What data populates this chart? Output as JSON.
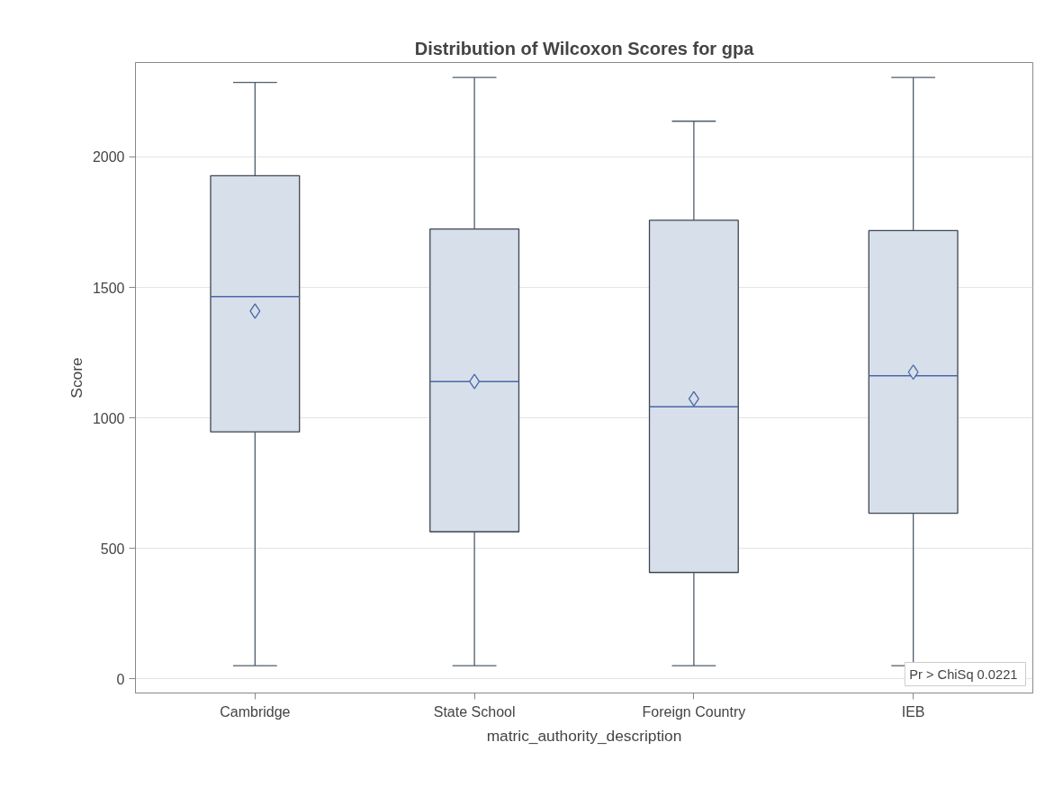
{
  "chart_data": {
    "type": "box",
    "title": "Distribution of Wilcoxon Scores for gpa",
    "xlabel": "matric_authority_description",
    "ylabel": "Score",
    "categories": [
      "Cambridge",
      "State School",
      "Foreign Country",
      "IEB"
    ],
    "series": [
      {
        "color": "#d7dfea",
        "boxes": [
          {
            "low": 50,
            "q1": 946,
            "median": 1465,
            "q3": 1928,
            "high": 2286,
            "mean": 1409
          },
          {
            "low": 50,
            "q1": 563,
            "median": 1139,
            "q3": 1724,
            "high": 2305,
            "mean": 1139
          },
          {
            "low": 50,
            "q1": 407,
            "median": 1042,
            "q3": 1757,
            "high": 2137,
            "mean": 1073
          },
          {
            "low": 50,
            "q1": 634,
            "median": 1161,
            "q3": 1718,
            "high": 2305,
            "mean": 1175
          }
        ]
      }
    ],
    "ylim": [
      -55,
      2362
    ],
    "yticks": [
      0,
      500,
      1000,
      1500,
      2000
    ],
    "grid": "y",
    "marker": "diamond",
    "annotations": [
      "Pr > ChiSq  0.0221"
    ]
  }
}
